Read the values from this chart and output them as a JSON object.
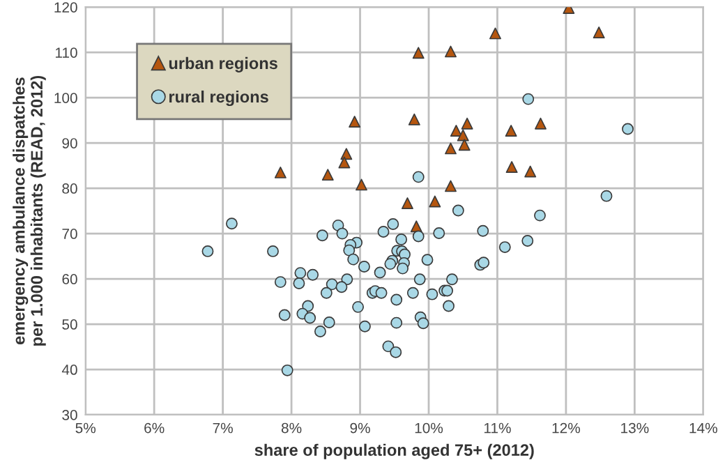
{
  "chart_data": {
    "type": "scatter",
    "xlabel": "share of population aged 75+ (2012)",
    "ylabel": "emergency ambulance dispatches\nper 1.000 inhabitants (READ, 2012)",
    "xlim": [
      5,
      14
    ],
    "ylim": [
      30,
      120
    ],
    "xticks": [
      {
        "value": 5,
        "label": "5%"
      },
      {
        "value": 6,
        "label": "6%"
      },
      {
        "value": 7,
        "label": "7%"
      },
      {
        "value": 8,
        "label": "8%"
      },
      {
        "value": 9,
        "label": "9%"
      },
      {
        "value": 10,
        "label": "10%"
      },
      {
        "value": 11,
        "label": "11%"
      },
      {
        "value": 12,
        "label": "12%"
      },
      {
        "value": 13,
        "label": "13%"
      },
      {
        "value": 14,
        "label": "14%"
      }
    ],
    "yticks": [
      30,
      40,
      50,
      60,
      70,
      80,
      90,
      100,
      110,
      120
    ],
    "grid": true,
    "legend": "top left",
    "series": [
      {
        "name": "urban regions",
        "color": "#b5560f",
        "marker": "triangle",
        "x": [
          12.04,
          12.48,
          10.97,
          9.85,
          10.32,
          8.92,
          9.79,
          10.56,
          11.63,
          10.4,
          11.2,
          10.5,
          10.32,
          10.52,
          8.8,
          8.77,
          7.84,
          8.53,
          11.21,
          11.48,
          9.02,
          10.32,
          9.69,
          10.09,
          9.82
        ],
        "values": [
          119.8,
          114.4,
          114.2,
          109.9,
          110.2,
          94.7,
          95.2,
          94.3,
          94.3,
          92.7,
          92.7,
          91.7,
          88.8,
          89.6,
          87.6,
          85.7,
          83.5,
          83.0,
          84.7,
          83.7,
          80.8,
          80.5,
          76.7,
          77.1,
          71.6
        ]
      },
      {
        "name": "rural regions",
        "color": "#a9d8e6",
        "marker": "circle",
        "x": [
          11.45,
          12.9,
          9.85,
          12.59,
          10.43,
          11.62,
          7.13,
          8.68,
          9.48,
          8.45,
          8.74,
          9.34,
          10.15,
          10.79,
          9.85,
          8.95,
          9.6,
          8.86,
          11.44,
          11.11,
          6.78,
          7.73,
          8.84,
          9.54,
          9.61,
          9.65,
          8.9,
          9.98,
          9.47,
          9.44,
          9.64,
          9.62,
          10.75,
          10.8,
          9.06,
          8.13,
          8.31,
          9.29,
          7.84,
          8.11,
          8.81,
          8.59,
          9.87,
          10.34,
          8.73,
          8.51,
          9.18,
          9.22,
          9.31,
          9.77,
          10.05,
          10.23,
          10.27,
          9.53,
          8.24,
          8.97,
          10.29,
          8.16,
          7.9,
          8.27,
          9.88,
          8.55,
          9.53,
          9.92,
          9.07,
          8.42,
          9.41,
          9.52,
          7.94
        ],
        "values": [
          99.7,
          93.1,
          82.5,
          78.3,
          75.1,
          74.0,
          72.2,
          71.8,
          72.1,
          69.6,
          70.0,
          70.4,
          70.1,
          70.6,
          69.4,
          68.0,
          68.7,
          67.5,
          68.4,
          67.0,
          66.1,
          66.1,
          66.3,
          66.2,
          66.1,
          65.4,
          64.3,
          64.2,
          64.0,
          63.3,
          63.5,
          62.3,
          63.1,
          63.6,
          62.7,
          61.3,
          60.9,
          61.4,
          59.3,
          59.0,
          59.9,
          58.8,
          59.9,
          59.9,
          58.2,
          56.9,
          56.9,
          57.3,
          56.9,
          56.9,
          56.6,
          57.4,
          57.4,
          55.4,
          54.0,
          53.8,
          54.0,
          52.3,
          52.0,
          51.4,
          51.5,
          50.4,
          50.3,
          50.2,
          49.5,
          48.4,
          45.1,
          43.8,
          39.8
        ]
      }
    ]
  }
}
